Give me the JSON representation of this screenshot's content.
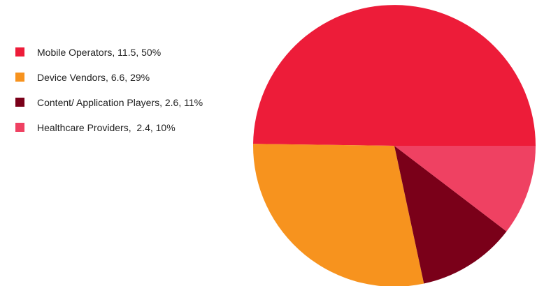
{
  "chart_data": {
    "type": "pie",
    "title": "",
    "legend_position": "left",
    "categories": [
      "Mobile Operators",
      "Device Vendors",
      "Content/ Application Players",
      "Healthcare Providers"
    ],
    "values": [
      11.5,
      6.6,
      2.6,
      2.4
    ],
    "percent_labels": [
      "50%",
      "29%",
      "11%",
      "10%"
    ],
    "legend_labels": [
      "Mobile Operators, 11.5, 50%",
      "Device Vendors, 6.6, 29%",
      "Content/ Application Players, 2.6, 11%",
      "Healthcare Providers,  2.4, 10%"
    ],
    "colors": [
      "#ed1c39",
      "#f7931e",
      "#7a0019",
      "#ef4162"
    ],
    "start_angle_deg": 0,
    "direction": "clockwise"
  }
}
